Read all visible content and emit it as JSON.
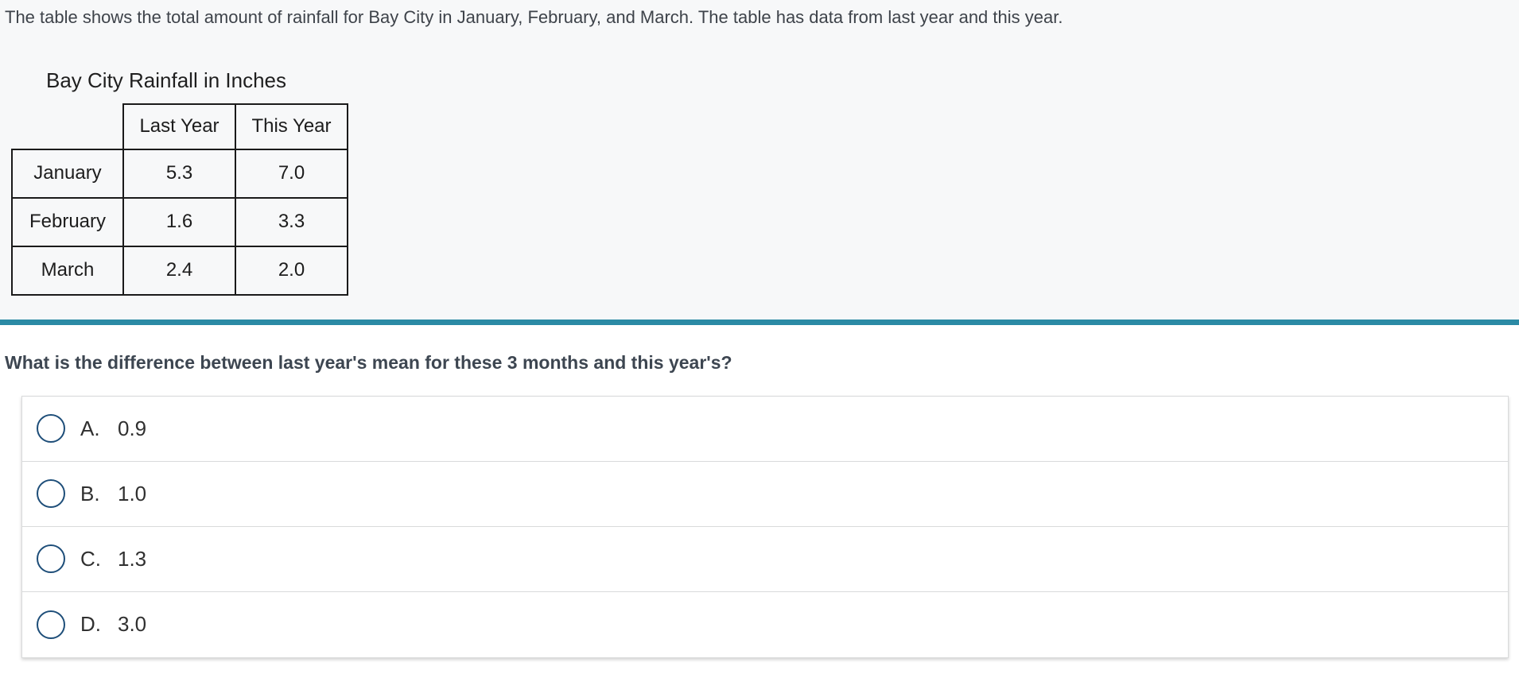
{
  "instruction": "The table shows the total amount of rainfall for Bay City in January, February, and March. The table has data from last year and this year.",
  "table": {
    "title": "Bay City Rainfall in Inches",
    "col_headers": [
      "Last Year",
      "This Year"
    ],
    "rows": [
      {
        "label": "January",
        "last_year": "5.3",
        "this_year": "7.0"
      },
      {
        "label": "February",
        "last_year": "1.6",
        "this_year": "3.3"
      },
      {
        "label": "March",
        "last_year": "2.4",
        "this_year": "2.0"
      }
    ]
  },
  "question": "What is the difference between last year's mean for these 3 months and this year's?",
  "options": [
    {
      "letter": "A.",
      "value": "0.9"
    },
    {
      "letter": "B.",
      "value": "1.0"
    },
    {
      "letter": "C.",
      "value": "1.3"
    },
    {
      "letter": "D.",
      "value": "3.0"
    }
  ],
  "colors": {
    "divider_teal": "#2b8aa5",
    "radio_border_blue": "#1e4e79",
    "stem_background": "#f7f8f9"
  }
}
